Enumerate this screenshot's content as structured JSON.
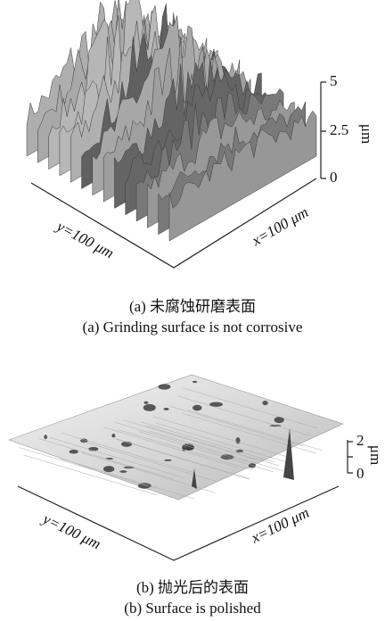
{
  "panels": [
    {
      "vertical_axis": {
        "ticks": [
          "5",
          "2.5",
          "0"
        ],
        "unit": "μm"
      },
      "y_axis_label": "y=100 μm",
      "x_axis_label": "x=100 μm",
      "caption_cn": "(a) 未腐蚀研磨表面",
      "caption_en": "(a) Grinding surface is not corrosive"
    },
    {
      "vertical_axis": {
        "ticks": [
          "2",
          "0"
        ],
        "unit": "μm"
      },
      "y_axis_label": "y=100 μm",
      "x_axis_label": "x=100 μm",
      "caption_cn": "(b) 抛光后的表面",
      "caption_en": "(b) Surface is polished"
    }
  ]
}
